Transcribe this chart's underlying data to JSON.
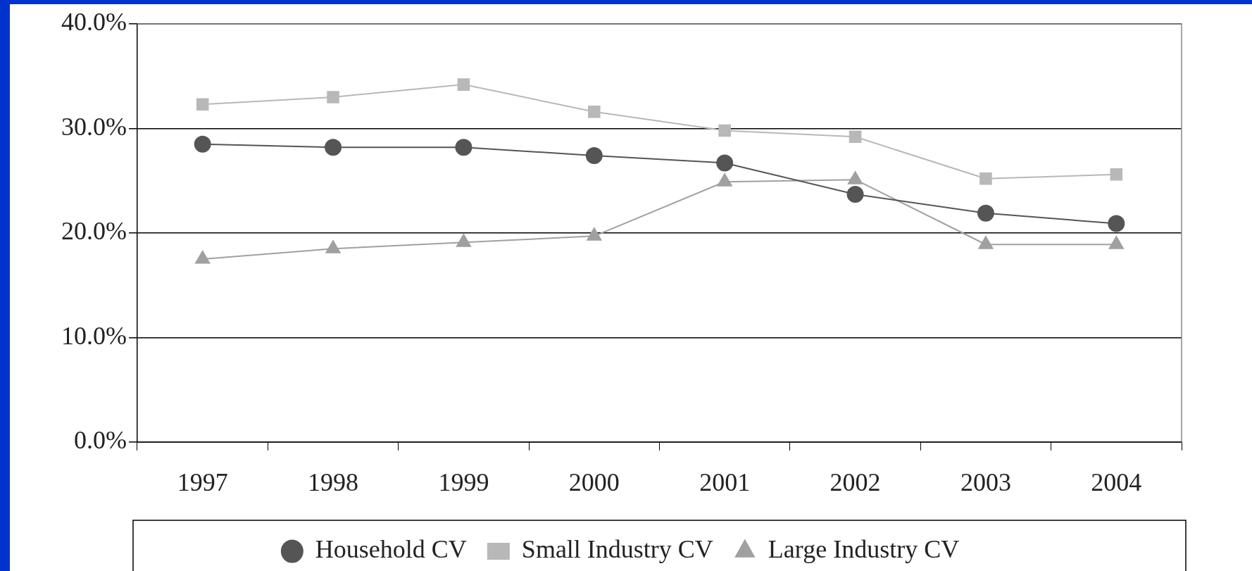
{
  "chart_data": {
    "type": "line",
    "categories": [
      "1997",
      "1998",
      "1999",
      "2000",
      "2001",
      "2002",
      "2003",
      "2004"
    ],
    "series": [
      {
        "name": "Household CV",
        "color": "#555555",
        "marker": "circle",
        "values": [
          28.5,
          28.2,
          28.2,
          27.4,
          26.7,
          23.7,
          21.9,
          20.9
        ]
      },
      {
        "name": "Small Industry CV",
        "color": "#b8b8b8",
        "marker": "square",
        "values": [
          32.3,
          33.0,
          34.2,
          31.6,
          29.8,
          29.2,
          25.2,
          25.6
        ]
      },
      {
        "name": "Large Industry CV",
        "color": "#a0a0a0",
        "marker": "triangle",
        "values": [
          17.5,
          18.5,
          19.1,
          19.7,
          24.9,
          25.1,
          18.9,
          18.9
        ]
      }
    ],
    "ylim": [
      0,
      40
    ],
    "yticks": [
      {
        "value": 0,
        "label": "0.0%"
      },
      {
        "value": 10,
        "label": "10.0%"
      },
      {
        "value": 20,
        "label": "20.0%"
      },
      {
        "value": 30,
        "label": "30.0%"
      },
      {
        "value": 40,
        "label": "40.0%"
      }
    ],
    "grid": "y",
    "legend": "bottom"
  }
}
